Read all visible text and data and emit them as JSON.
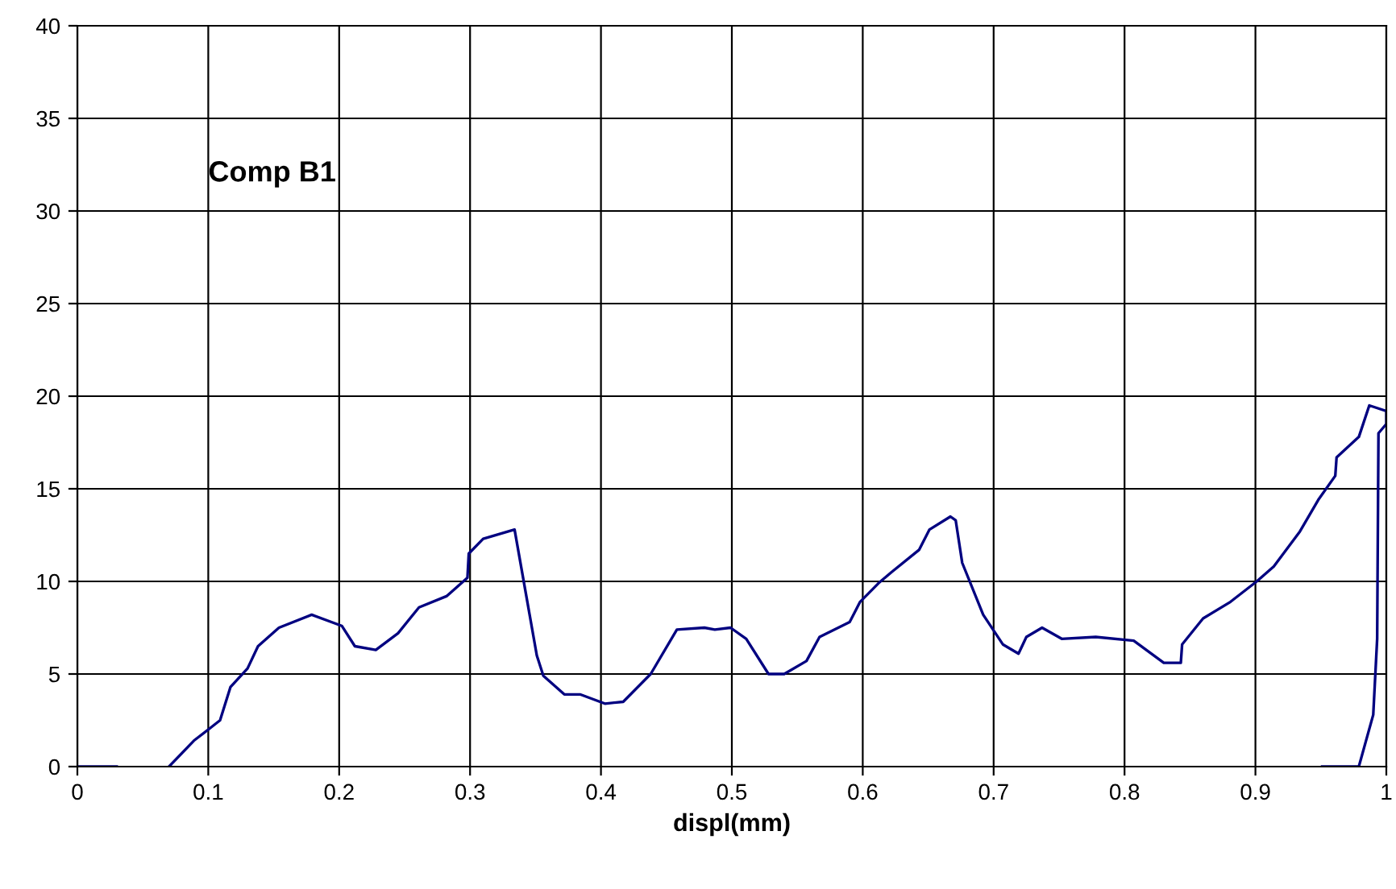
{
  "chart_data": {
    "type": "line",
    "xlabel": "displ(mm)",
    "annotations": [
      "Comp B1"
    ],
    "xlim": [
      0,
      1
    ],
    "ylim": [
      0,
      40
    ],
    "xticks": [
      0,
      0.1,
      0.2,
      0.3,
      0.4,
      0.5,
      0.6,
      0.7,
      0.8,
      0.9,
      1
    ],
    "yticks": [
      0,
      5,
      10,
      15,
      20,
      25,
      30,
      35,
      40
    ],
    "grid": true,
    "legend": false,
    "marker": "none",
    "line_style": "solid",
    "series": [
      {
        "color": "#000080",
        "x": [
          0,
          0.03,
          null,
          0.07,
          0.089,
          0.1,
          0.109,
          0.117,
          0.13,
          0.138,
          0.154,
          0.179,
          0.202,
          0.212,
          0.228,
          0.245,
          0.261,
          0.282,
          0.298,
          0.299,
          0.31,
          0.334,
          0.343,
          0.351,
          0.356,
          0.372,
          0.384,
          0.403,
          0.417,
          0.438,
          0.458,
          0.479,
          0.487,
          0.499,
          0.511,
          0.528,
          0.54,
          0.557,
          0.567,
          0.59,
          0.598,
          0.612,
          0.622,
          0.643,
          0.651,
          0.667,
          0.671,
          0.676,
          0.692,
          0.707,
          0.719,
          0.725,
          0.737,
          0.752,
          0.778,
          0.807,
          0.83,
          0.843,
          0.844,
          0.86,
          0.881,
          0.901,
          0.914,
          0.934,
          0.948,
          0.961,
          0.962,
          0.979,
          0.987,
          1.0,
          1.0,
          0.994,
          0.993,
          0.99,
          0.979,
          0.951
        ],
        "values": [
          0,
          0,
          null,
          0,
          1.4,
          2.0,
          2.5,
          4.3,
          5.3,
          6.5,
          7.5,
          8.2,
          7.6,
          6.5,
          6.3,
          7.2,
          8.6,
          9.2,
          10.2,
          11.5,
          12.3,
          12.8,
          9.2,
          6.0,
          4.9,
          3.9,
          3.9,
          3.4,
          3.5,
          5.0,
          7.4,
          7.5,
          7.4,
          7.5,
          6.9,
          5.0,
          5.0,
          5.7,
          7.0,
          7.8,
          8.9,
          9.9,
          10.5,
          11.7,
          12.8,
          13.5,
          13.3,
          11.0,
          8.2,
          6.6,
          6.1,
          7.0,
          7.5,
          6.9,
          7.0,
          6.8,
          5.6,
          5.6,
          6.6,
          8.0,
          8.9,
          10.0,
          10.8,
          12.7,
          14.4,
          15.7,
          16.7,
          17.8,
          19.5,
          19.2,
          18.5,
          18.0,
          6.9,
          2.8,
          0,
          0
        ]
      }
    ]
  }
}
